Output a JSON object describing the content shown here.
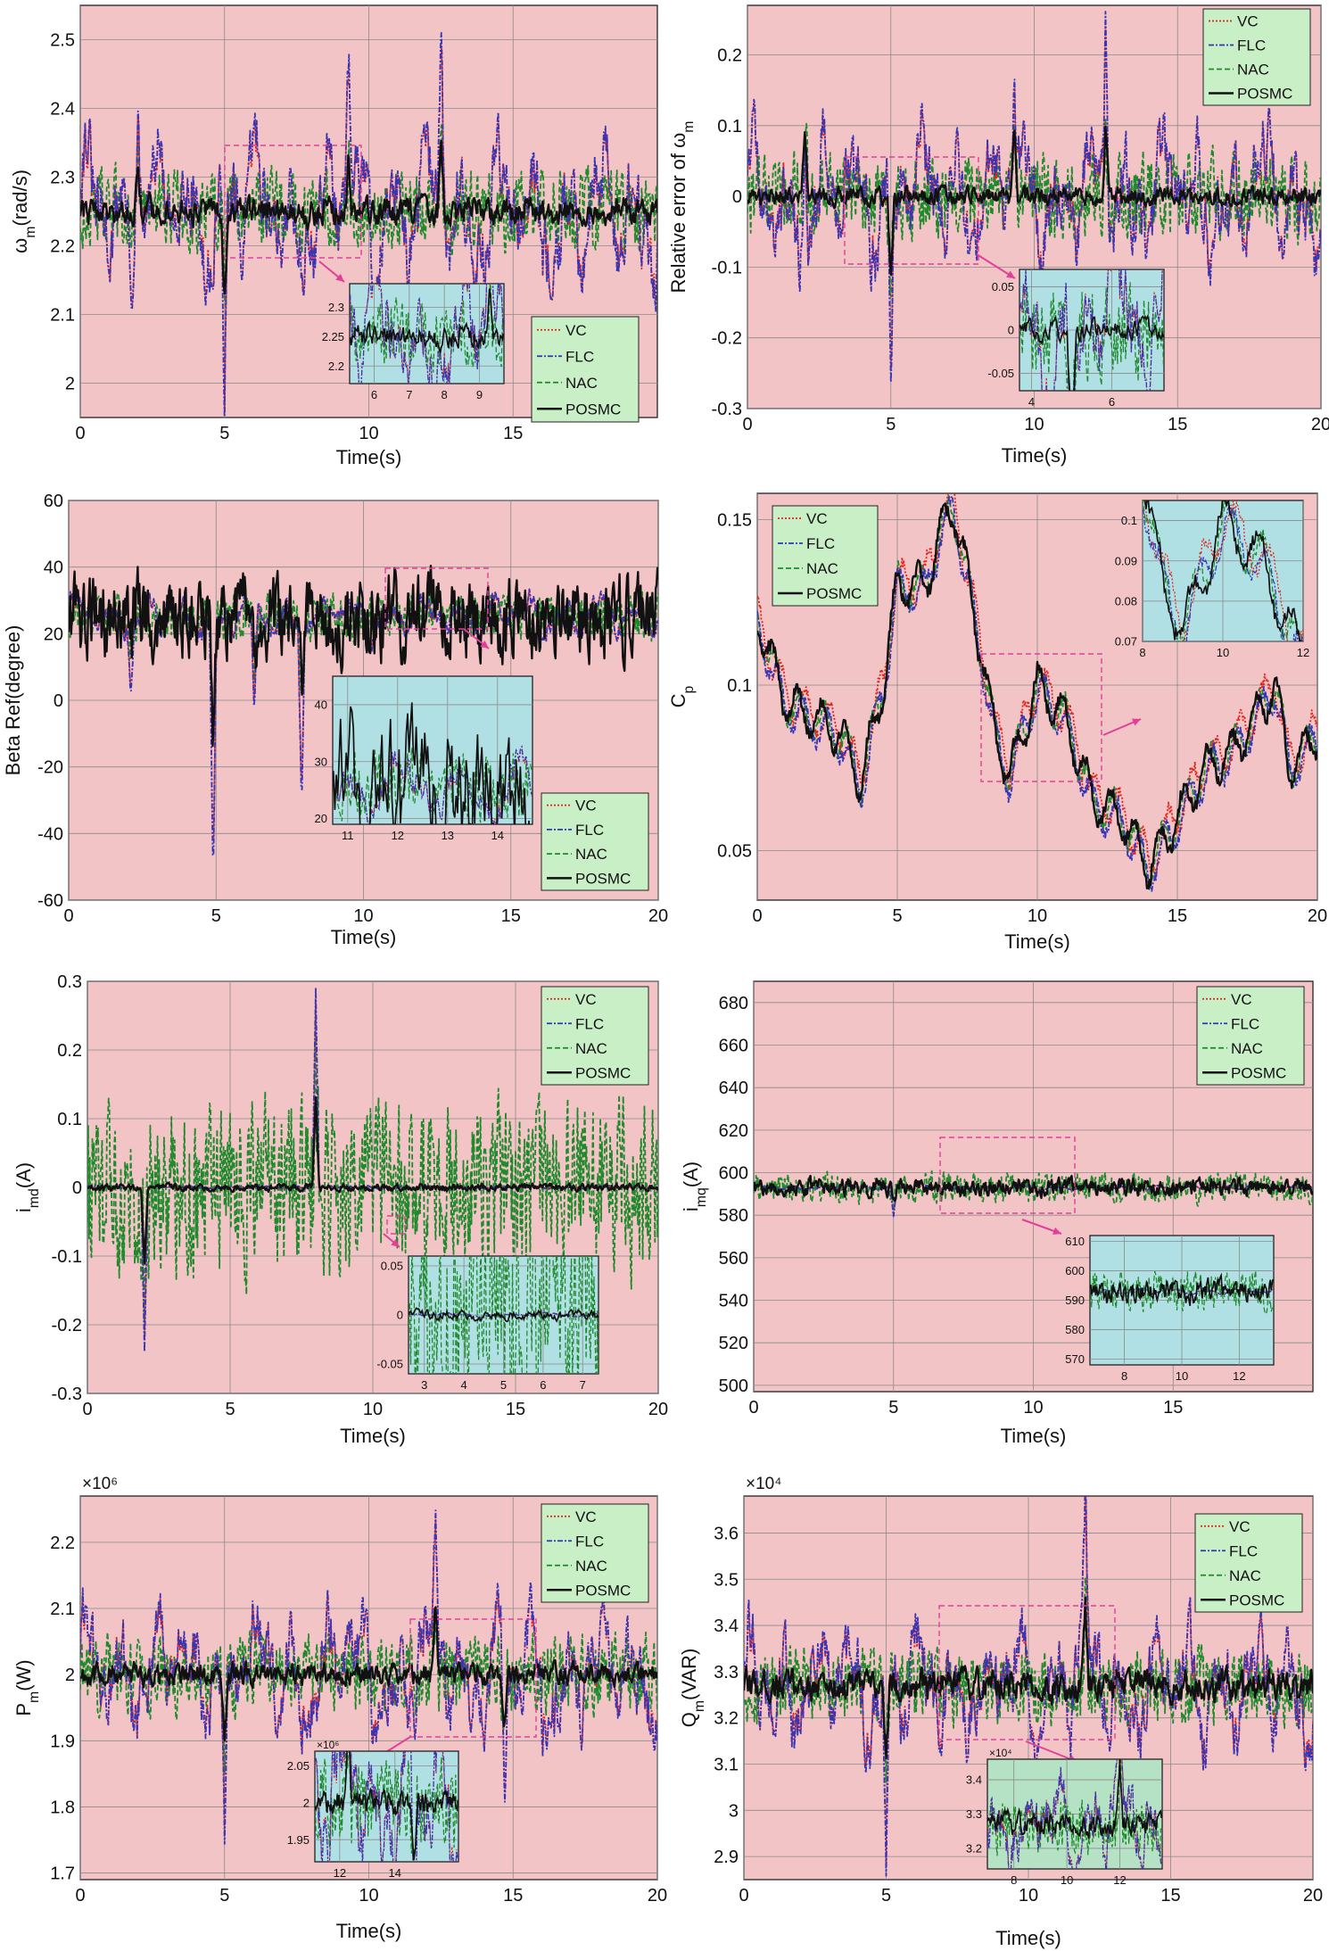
{
  "legend_names": [
    "VC",
    "FLC",
    "NAC",
    "POSMC"
  ],
  "colors": {
    "background": "#f2c4c6",
    "inset_cyan": "#b0e0e3",
    "inset_green": "#b5e2c4",
    "legend_bg": "#c9efc6",
    "grid": "#8a8a8a",
    "callout": "#e0409a",
    "VC": "#e3241b",
    "FLC": "#3535b8",
    "NAC": "#1f8a2c",
    "POSMC": "#111111"
  },
  "chart_data": [
    {
      "id": "wm",
      "type": "line",
      "ylabel": "ω_m(rad/s)",
      "xlabel": "Time(s)",
      "xlim": [
        0,
        20
      ],
      "ylim": [
        1.95,
        2.55
      ],
      "xticks": [
        0,
        5,
        10,
        15
      ],
      "yticks": [
        2,
        2.1,
        2.2,
        2.3,
        2.4,
        2.5
      ],
      "ytick_labels": [
        "2",
        "2.1",
        "2.2",
        "2.3",
        "2.4",
        "2.5"
      ],
      "legend_position": "bottom-right",
      "grid": true,
      "series_params": {
        "base": 2.25,
        "amp_vc": 0.11,
        "amp_nac": 0.05,
        "amp_posmc": 0.015
      },
      "features": [
        [
          5,
          -0.24
        ],
        [
          2,
          0.16
        ],
        [
          12.5,
          0.22
        ],
        [
          9.3,
          0.17
        ]
      ],
      "inset": {
        "xlim": [
          5.3,
          9.7
        ],
        "ylim": [
          2.17,
          2.34
        ],
        "xticks": [
          6,
          7,
          8,
          9
        ],
        "yticks": [
          2.2,
          2.25,
          2.3
        ],
        "ytick_labels": [
          "2.2",
          "2.25",
          "2.3"
        ],
        "color": "cyan"
      }
    },
    {
      "id": "rel",
      "type": "line",
      "ylabel": "Relative error of ω_m",
      "xlabel": "Time(s)",
      "xlim": [
        0,
        20
      ],
      "ylim": [
        -0.3,
        0.27
      ],
      "xticks": [
        0,
        5,
        10,
        15,
        20
      ],
      "yticks": [
        -0.3,
        -0.2,
        -0.1,
        0,
        0.1,
        0.2
      ],
      "ytick_labels": [
        "-0.3",
        "-0.2",
        "-0.1",
        "0",
        "0.1",
        "0.2"
      ],
      "legend_position": "top-right",
      "grid": true,
      "series_params": {
        "base": 0,
        "amp_vc": 0.1,
        "amp_nac": 0.05,
        "amp_posmc": 0.01
      },
      "features": [
        [
          5,
          -0.24
        ],
        [
          2,
          0.18
        ],
        [
          12.5,
          0.21
        ],
        [
          9.3,
          0.17
        ]
      ],
      "inset": {
        "xlim": [
          3.7,
          7.3
        ],
        "ylim": [
          -0.07,
          0.07
        ],
        "xticks": [
          4,
          6
        ],
        "yticks": [
          -0.05,
          0,
          0.05
        ],
        "ytick_labels": [
          "-0.05",
          "0",
          "0.05"
        ],
        "color": "cyan"
      }
    },
    {
      "id": "beta",
      "type": "line",
      "ylabel": "Beta Ref(degree)",
      "xlabel": "Time(s)",
      "xlim": [
        0,
        20
      ],
      "ylim": [
        -60,
        60
      ],
      "xticks": [
        0,
        5,
        10,
        15,
        20
      ],
      "yticks": [
        -60,
        -40,
        -20,
        0,
        20,
        40,
        60
      ],
      "ytick_labels": [
        "-60",
        "-40",
        "-20",
        "0",
        "20",
        "40",
        "60"
      ],
      "legend_position": "bottom-right",
      "grid": true,
      "series_params": {
        "base": 25,
        "amp_vc": 6,
        "amp_nac": 6,
        "amp_posmc": 10
      },
      "features": [
        [
          4.9,
          -75
        ],
        [
          7.9,
          -48
        ],
        [
          2.1,
          -22
        ],
        [
          6.3,
          -30
        ]
      ],
      "inset": {
        "xlim": [
          10.7,
          14.7
        ],
        "ylim": [
          19,
          45
        ],
        "xticks": [
          11,
          12,
          13,
          14
        ],
        "yticks": [
          20,
          30,
          40
        ],
        "ytick_labels": [
          "20",
          "30",
          "40"
        ],
        "color": "cyan"
      }
    },
    {
      "id": "cp",
      "type": "line",
      "ylabel": "C_p",
      "xlabel": "Time(s)",
      "xlim": [
        0,
        20
      ],
      "ylim": [
        0.035,
        0.158
      ],
      "xticks": [
        0,
        5,
        10,
        15,
        20
      ],
      "yticks": [
        0.05,
        0.1,
        0.15
      ],
      "ytick_labels": [
        "0.05",
        "0.1",
        "0.15"
      ],
      "legend_position": "top-left",
      "grid": true,
      "cp_points": [
        [
          0,
          0.12
        ],
        [
          1,
          0.095
        ],
        [
          2,
          0.09
        ],
        [
          3,
          0.085
        ],
        [
          3.7,
          0.07
        ],
        [
          4.5,
          0.1
        ],
        [
          5,
          0.13
        ],
        [
          6,
          0.13
        ],
        [
          6.5,
          0.145
        ],
        [
          7,
          0.155
        ],
        [
          8,
          0.11
        ],
        [
          8.5,
          0.085
        ],
        [
          9,
          0.073
        ],
        [
          10,
          0.1
        ],
        [
          11,
          0.09
        ],
        [
          12,
          0.065
        ],
        [
          13,
          0.06
        ],
        [
          14,
          0.045
        ],
        [
          15,
          0.06
        ],
        [
          16,
          0.075
        ],
        [
          17,
          0.08
        ],
        [
          18.5,
          0.1
        ],
        [
          19,
          0.075
        ],
        [
          20,
          0.085
        ]
      ],
      "inset": {
        "xlim": [
          8,
          12
        ],
        "ylim": [
          0.07,
          0.105
        ],
        "xticks": [
          8,
          10,
          12
        ],
        "yticks": [
          0.07,
          0.08,
          0.09,
          0.1
        ],
        "ytick_labels": [
          "0.07",
          "0.08",
          "0.09",
          "0.1"
        ],
        "color": "cyan"
      }
    },
    {
      "id": "imd",
      "type": "line",
      "ylabel": "i_md(A)",
      "xlabel": "Time(s)",
      "xlim": [
        0,
        20
      ],
      "ylim": [
        -0.3,
        0.3
      ],
      "xticks": [
        0,
        5,
        10,
        15,
        20
      ],
      "yticks": [
        -0.3,
        -0.2,
        -0.1,
        0,
        0.1,
        0.2,
        0.3
      ],
      "ytick_labels": [
        "-0.3",
        "-0.2",
        "-0.1",
        "0",
        "0.1",
        "0.2",
        "0.3"
      ],
      "legend_position": "top-right",
      "grid": true,
      "series_params": {
        "base": 0,
        "amp_vc": 0.002,
        "amp_nac": 0.11,
        "amp_posmc": 0.004
      },
      "features": [
        [
          8,
          0.27
        ],
        [
          2,
          -0.22
        ]
      ],
      "inset": {
        "xlim": [
          2.6,
          7.4
        ],
        "ylim": [
          -0.06,
          0.06
        ],
        "xticks": [
          3,
          4,
          5,
          6,
          7
        ],
        "yticks": [
          -0.05,
          0,
          0.05
        ],
        "ytick_labels": [
          "-0.05",
          "0",
          "0.05"
        ],
        "color": "cyan"
      }
    },
    {
      "id": "imq",
      "type": "line",
      "ylabel": "i_mq(A)",
      "xlabel": "Time(s)",
      "xlim": [
        0,
        20
      ],
      "ylim": [
        497,
        690
      ],
      "xticks": [
        0,
        5,
        10,
        15
      ],
      "yticks": [
        500,
        520,
        540,
        560,
        580,
        600,
        620,
        640,
        660,
        680
      ],
      "ytick_labels": [
        "500",
        "520",
        "540",
        "560",
        "580",
        "600",
        "620",
        "640",
        "660",
        "680"
      ],
      "legend_position": "top-right",
      "grid": true,
      "series_params": {
        "base": 593,
        "amp_vc": 1,
        "amp_nac": 6,
        "amp_posmc": 3
      },
      "features": [
        [
          5,
          -12
        ]
      ],
      "inset": {
        "xlim": [
          6.8,
          13.2
        ],
        "ylim": [
          568,
          612
        ],
        "xticks": [
          8,
          10,
          12
        ],
        "yticks": [
          570,
          580,
          590,
          600,
          610
        ],
        "ytick_labels": [
          "570",
          "580",
          "590",
          "600",
          "610"
        ],
        "color": "cyan"
      }
    },
    {
      "id": "pm",
      "type": "line",
      "ylabel": "P_m(W)",
      "xlabel": "Time(s)",
      "xlim": [
        0,
        20
      ],
      "ylim": [
        1.69,
        2.27
      ],
      "xticks": [
        0,
        5,
        10,
        15,
        20
      ],
      "yticks": [
        1.7,
        1.8,
        1.9,
        2,
        2.1,
        2.2
      ],
      "ytick_labels": [
        "1.7",
        "1.8",
        "1.9",
        "2",
        "2.1",
        "2.2"
      ],
      "multiplier": "×10⁶",
      "legend_position": "top-right",
      "grid": true,
      "series_params": {
        "base": 2.0,
        "amp_vc": 0.1,
        "amp_nac": 0.05,
        "amp_posmc": 0.013
      },
      "features": [
        [
          5,
          -0.22
        ],
        [
          12.3,
          0.2
        ],
        [
          14.7,
          -0.16
        ]
      ],
      "inset": {
        "xlim": [
          11.1,
          16.3
        ],
        "ylim": [
          1.92,
          2.07
        ],
        "xticks": [
          12,
          14
        ],
        "yticks": [
          1.95,
          2,
          2.05
        ],
        "ytick_labels": [
          "1.95",
          "2",
          "2.05"
        ],
        "multiplier": "×10⁶",
        "color": "cyan"
      }
    },
    {
      "id": "qm",
      "type": "line",
      "ylabel": "Q_m(VAR)",
      "xlabel": "Time(s)",
      "xlim": [
        0,
        20
      ],
      "ylim": [
        2.85,
        3.68
      ],
      "xticks": [
        0,
        5,
        10,
        15,
        20
      ],
      "yticks": [
        2.9,
        3,
        3.1,
        3.2,
        3.3,
        3.4,
        3.5,
        3.6
      ],
      "ytick_labels": [
        "2.9",
        "3",
        "3.1",
        "3.2",
        "3.3",
        "3.4",
        "3.5",
        "3.6"
      ],
      "multiplier": "×10⁴",
      "legend_position": "top-right",
      "grid": true,
      "series_params": {
        "base": 3.27,
        "amp_vc": 0.14,
        "amp_nac": 0.07,
        "amp_posmc": 0.025
      },
      "features": [
        [
          5,
          -0.37
        ],
        [
          12,
          0.33
        ]
      ],
      "inset": {
        "xlim": [
          7,
          13.6
        ],
        "ylim": [
          3.14,
          3.46
        ],
        "xticks": [
          8,
          10,
          12
        ],
        "yticks": [
          3.2,
          3.3,
          3.4
        ],
        "ytick_labels": [
          "3.2",
          "3.3",
          "3.4"
        ],
        "multiplier": "×10⁴",
        "color": "green"
      }
    }
  ]
}
